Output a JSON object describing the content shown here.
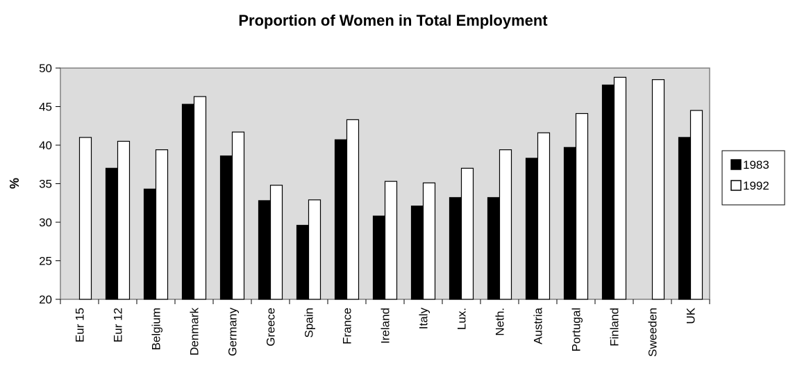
{
  "chart_data": {
    "type": "bar",
    "title": "Proportion of Women in Total Employment",
    "xlabel": "",
    "ylabel": "%",
    "ylim": [
      20,
      50
    ],
    "yticks": [
      20,
      25,
      30,
      35,
      40,
      45,
      50
    ],
    "grid": false,
    "legend_position": "right",
    "categories": [
      "Eur 15",
      "Eur 12",
      "Belgium",
      "Denmark",
      "Germany",
      "Greece",
      "Spain",
      "France",
      "Ireland",
      "Italy",
      "Lux.",
      "Neth.",
      "Austria",
      "Portugal",
      "Finland",
      "Sweeden",
      "UK"
    ],
    "series": [
      {
        "name": "1983",
        "color": "#000000",
        "values": [
          null,
          37.0,
          34.3,
          45.3,
          38.6,
          32.8,
          29.6,
          40.7,
          30.8,
          32.1,
          33.2,
          33.2,
          38.3,
          39.7,
          47.8,
          null,
          41.0
        ]
      },
      {
        "name": "1992",
        "color": "#ffffff",
        "values": [
          41.0,
          40.5,
          39.4,
          46.3,
          41.7,
          34.8,
          32.9,
          43.3,
          35.3,
          35.1,
          37.0,
          39.4,
          41.6,
          44.1,
          48.8,
          48.5,
          44.5
        ]
      }
    ],
    "plot_background": "#dcdcdc"
  }
}
